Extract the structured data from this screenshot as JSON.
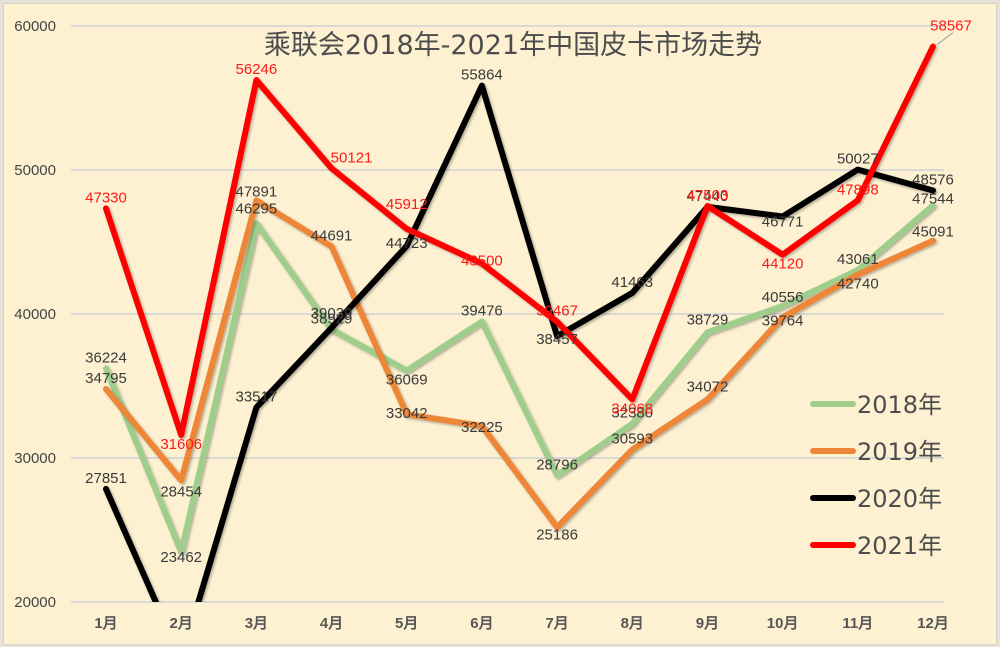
{
  "chart_data": {
    "type": "line",
    "title": "乘联会2018年-2021年中国皮卡市场走势",
    "xlabel": "",
    "ylabel": "",
    "categories": [
      "1月",
      "2月",
      "3月",
      "4月",
      "5月",
      "6月",
      "7月",
      "8月",
      "9月",
      "10月",
      "11月",
      "12月"
    ],
    "ylim": [
      20000,
      60000
    ],
    "yticks": [
      20000,
      30000,
      40000,
      50000,
      60000
    ],
    "grid": true,
    "legend_position": "right-bottom",
    "series": [
      {
        "name": "2018年",
        "color": "#9fce8c",
        "values": [
          36224,
          23462,
          46295,
          38929,
          36069,
          39476,
          28796,
          32380,
          38729,
          40556,
          43061,
          47544
        ]
      },
      {
        "name": "2019年",
        "color": "#ee8639",
        "values": [
          34795,
          28454,
          47891,
          44691,
          33042,
          32225,
          25186,
          30593,
          34072,
          39764,
          42740,
          45091
        ]
      },
      {
        "name": "2020年",
        "color": "#000000",
        "values": [
          27851,
          null,
          33517,
          39039,
          44723,
          55864,
          38457,
          41463,
          47440,
          46771,
          50027,
          48576
        ]
      },
      {
        "name": "2021年",
        "color": "#ff0000",
        "values": [
          47330,
          31606,
          56246,
          50121,
          45912,
          43500,
          39467,
          34068,
          47503,
          44120,
          47898,
          58567
        ]
      }
    ]
  },
  "legend": {
    "items": [
      "2018年",
      "2019年",
      "2020年",
      "2021年"
    ]
  }
}
